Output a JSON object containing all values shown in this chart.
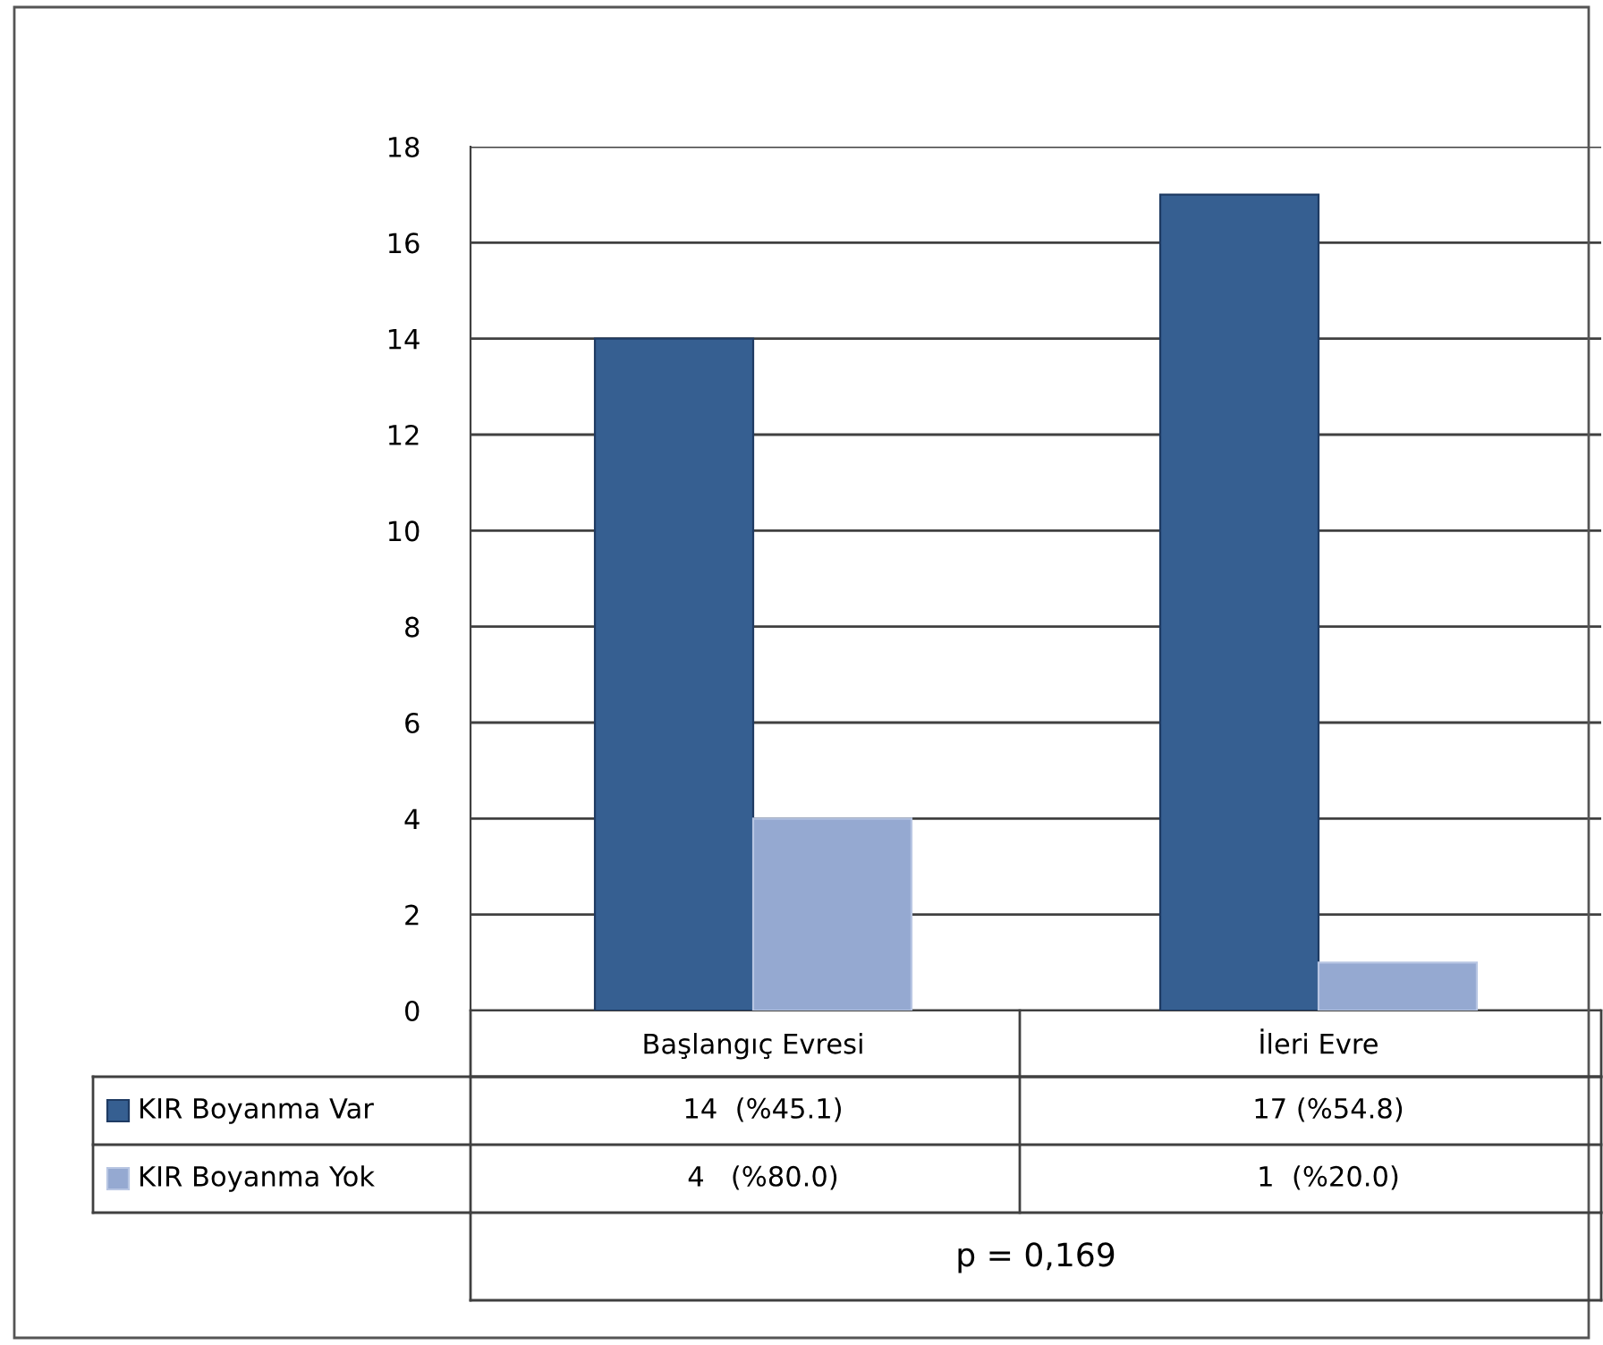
{
  "chart_data": {
    "type": "bar",
    "categories": [
      "Başlangıç Evresi",
      "İleri Evre"
    ],
    "series": [
      {
        "name": "KIR Boyanma Var",
        "color": "#365f91",
        "values": [
          14,
          17
        ],
        "value_labels": [
          "14  (%45.1)",
          "17 (%54.8)"
        ]
      },
      {
        "name": "KIR Boyanma Yok",
        "color": "#95a9d1",
        "values": [
          4,
          1
        ],
        "value_labels": [
          "4   (%80.0)",
          "1  (%20.0)"
        ]
      }
    ],
    "ylim": [
      0,
      18
    ],
    "yticks": [
      0,
      2,
      4,
      6,
      8,
      10,
      12,
      14,
      16,
      18
    ],
    "grid": "y",
    "legend": "bottom left",
    "annotations": [
      "p = 0,169"
    ]
  }
}
